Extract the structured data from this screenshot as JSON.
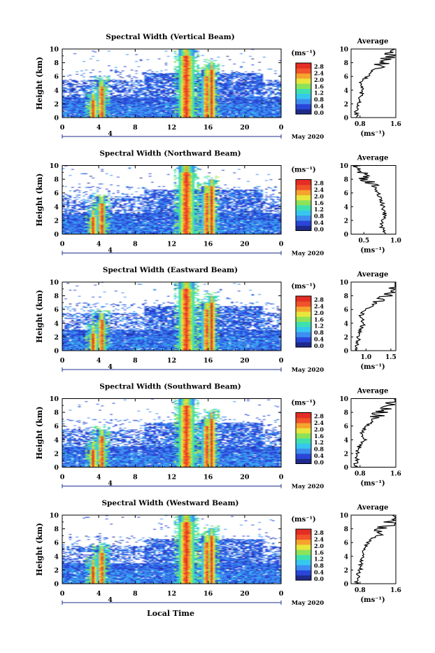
{
  "figure": {
    "xlabel": "Local Time",
    "xticks": [
      "0",
      "4",
      "8",
      "12",
      "16",
      "20",
      "0"
    ],
    "date_day": "4",
    "date_label": "May 2020",
    "ylabel": "Height (km)",
    "yticks": [
      "0",
      "2",
      "4",
      "6",
      "8",
      "10"
    ],
    "colorbar_unit": "(ms⁻¹)",
    "colorbar_ticks": [
      "0.0",
      "0.4",
      "0.8",
      "1.2",
      "1.6",
      "2.0",
      "2.4",
      "2.8"
    ],
    "avg_title": "Average",
    "avg_xlabel": "(ms⁻¹)",
    "colors": {
      "scale": [
        "#1e2a8a",
        "#2a46d8",
        "#3d8ef0",
        "#36c7ef",
        "#3fe0b0",
        "#8de25a",
        "#e8e63c",
        "#f6a32e",
        "#f0522a",
        "#e42d24"
      ]
    }
  },
  "chart_data": [
    {
      "type": "heatmap",
      "title": "Spectral Width (Vertical Beam)",
      "x_range_hours": [
        0,
        24
      ],
      "y_range_km": [
        0,
        10
      ],
      "color_range_ms": [
        0,
        2.8
      ],
      "convective_cells": [
        {
          "time_h": 3.4,
          "top_km": 3.5
        },
        {
          "time_h": 4.3,
          "top_km": 5.5
        },
        {
          "time_h": 13.6,
          "top_km": 10.0
        },
        {
          "time_h": 15.8,
          "top_km": 7.0
        },
        {
          "time_h": 16.4,
          "top_km": 8.0
        }
      ],
      "average_profile": {
        "xticks": [
          "0.8",
          "1.6"
        ],
        "xlim": [
          0.6,
          1.6
        ],
        "height_km": [
          0,
          1,
          2,
          3,
          4,
          5,
          6,
          7,
          8,
          9,
          9.8
        ],
        "value": [
          0.75,
          0.72,
          0.78,
          0.8,
          0.85,
          0.82,
          0.95,
          1.1,
          1.3,
          1.5,
          1.55
        ]
      }
    },
    {
      "type": "heatmap",
      "title": "Spectral Width (Northward Beam)",
      "x_range_hours": [
        0,
        24
      ],
      "y_range_km": [
        0,
        10
      ],
      "color_range_ms": [
        0,
        2.8
      ],
      "convective_cells": [
        {
          "time_h": 3.4,
          "top_km": 3.5
        },
        {
          "time_h": 4.3,
          "top_km": 5.5
        },
        {
          "time_h": 13.6,
          "top_km": 10.0
        },
        {
          "time_h": 15.8,
          "top_km": 7.0
        },
        {
          "time_h": 16.4,
          "top_km": 8.0
        }
      ],
      "average_profile": {
        "xticks": [
          "0.5",
          "1.0"
        ],
        "xlim": [
          0.3,
          1.0
        ],
        "height_km": [
          0,
          1,
          2,
          3,
          4,
          5,
          6,
          7,
          8,
          9,
          9.8
        ],
        "value": [
          0.85,
          0.78,
          0.8,
          0.82,
          0.8,
          0.78,
          0.72,
          0.65,
          0.55,
          0.45,
          0.4
        ]
      }
    },
    {
      "type": "heatmap",
      "title": "Spectral Width (Eastward Beam)",
      "x_range_hours": [
        0,
        24
      ],
      "y_range_km": [
        0,
        10
      ],
      "color_range_ms": [
        0,
        2.8
      ],
      "convective_cells": [
        {
          "time_h": 3.4,
          "top_km": 3.5
        },
        {
          "time_h": 4.3,
          "top_km": 5.5
        },
        {
          "time_h": 13.6,
          "top_km": 10.0
        },
        {
          "time_h": 15.8,
          "top_km": 7.0
        },
        {
          "time_h": 16.4,
          "top_km": 8.0
        }
      ],
      "average_profile": {
        "xticks": [
          "1.0",
          "1.5"
        ],
        "xlim": [
          0.7,
          1.6
        ],
        "height_km": [
          0,
          1,
          2,
          3,
          4,
          5,
          6,
          7,
          8,
          9,
          9.8
        ],
        "value": [
          0.8,
          0.82,
          0.85,
          0.9,
          0.95,
          0.88,
          1.0,
          1.2,
          1.45,
          1.55,
          1.6
        ]
      }
    },
    {
      "type": "heatmap",
      "title": "Spectral Width (Southward Beam)",
      "x_range_hours": [
        0,
        24
      ],
      "y_range_km": [
        0,
        10
      ],
      "color_range_ms": [
        0,
        2.8
      ],
      "convective_cells": [
        {
          "time_h": 3.4,
          "top_km": 3.5
        },
        {
          "time_h": 4.3,
          "top_km": 5.5
        },
        {
          "time_h": 13.6,
          "top_km": 10.0
        },
        {
          "time_h": 15.8,
          "top_km": 7.0
        },
        {
          "time_h": 16.4,
          "top_km": 8.0
        }
      ],
      "average_profile": {
        "xticks": [
          "0.8",
          "1.6"
        ],
        "xlim": [
          0.6,
          1.6
        ],
        "height_km": [
          0,
          1,
          2,
          3,
          4,
          5,
          6,
          7,
          8,
          9,
          9.8
        ],
        "value": [
          0.7,
          0.72,
          0.75,
          0.78,
          0.9,
          0.85,
          0.95,
          1.1,
          1.25,
          1.45,
          1.55
        ]
      }
    },
    {
      "type": "heatmap",
      "title": "Spectral Width (Westward Beam)",
      "x_range_hours": [
        0,
        24
      ],
      "y_range_km": [
        0,
        10
      ],
      "color_range_ms": [
        0,
        2.8
      ],
      "convective_cells": [
        {
          "time_h": 3.4,
          "top_km": 3.5
        },
        {
          "time_h": 4.3,
          "top_km": 5.5
        },
        {
          "time_h": 13.6,
          "top_km": 10.0
        },
        {
          "time_h": 15.8,
          "top_km": 7.0
        },
        {
          "time_h": 16.4,
          "top_km": 8.0
        }
      ],
      "average_profile": {
        "xticks": [
          "0.8",
          "1.6"
        ],
        "xlim": [
          0.6,
          1.6
        ],
        "height_km": [
          0,
          1,
          2,
          3,
          4,
          5,
          6,
          7,
          8,
          9,
          9.8
        ],
        "value": [
          0.72,
          0.75,
          0.8,
          0.82,
          0.88,
          0.9,
          0.98,
          1.15,
          1.3,
          1.5,
          1.55
        ]
      }
    }
  ]
}
